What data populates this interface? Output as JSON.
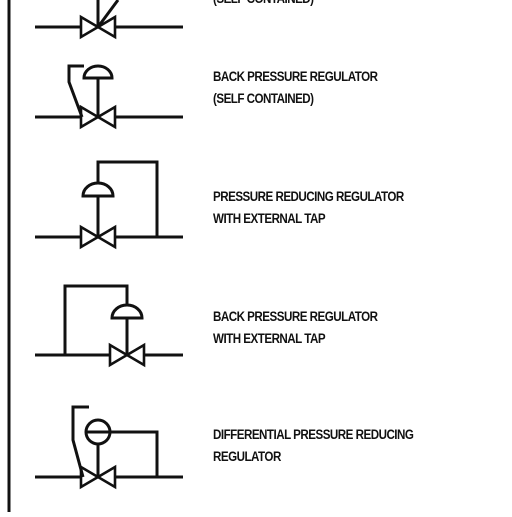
{
  "symbols": [
    {
      "id": "self-contained-top",
      "lines": [
        "",
        "(SELF CONTAINED)"
      ]
    },
    {
      "id": "back-pressure-regulator-self-contained",
      "lines": [
        "BACK PRESSURE REGULATOR",
        "(SELF CONTAINED)"
      ]
    },
    {
      "id": "pressure-reducing-regulator-external-tap",
      "lines": [
        "PRESSURE REDUCING REGULATOR",
        "WITH EXTERNAL TAP"
      ]
    },
    {
      "id": "back-pressure-regulator-external-tap",
      "lines": [
        "BACK PRESSURE REGULATOR",
        "WITH EXTERNAL TAP"
      ]
    },
    {
      "id": "differential-pressure-reducing-regulator",
      "lines": [
        "DIFFERENTIAL PRESSURE REDUCING",
        "REGULATOR"
      ]
    }
  ]
}
